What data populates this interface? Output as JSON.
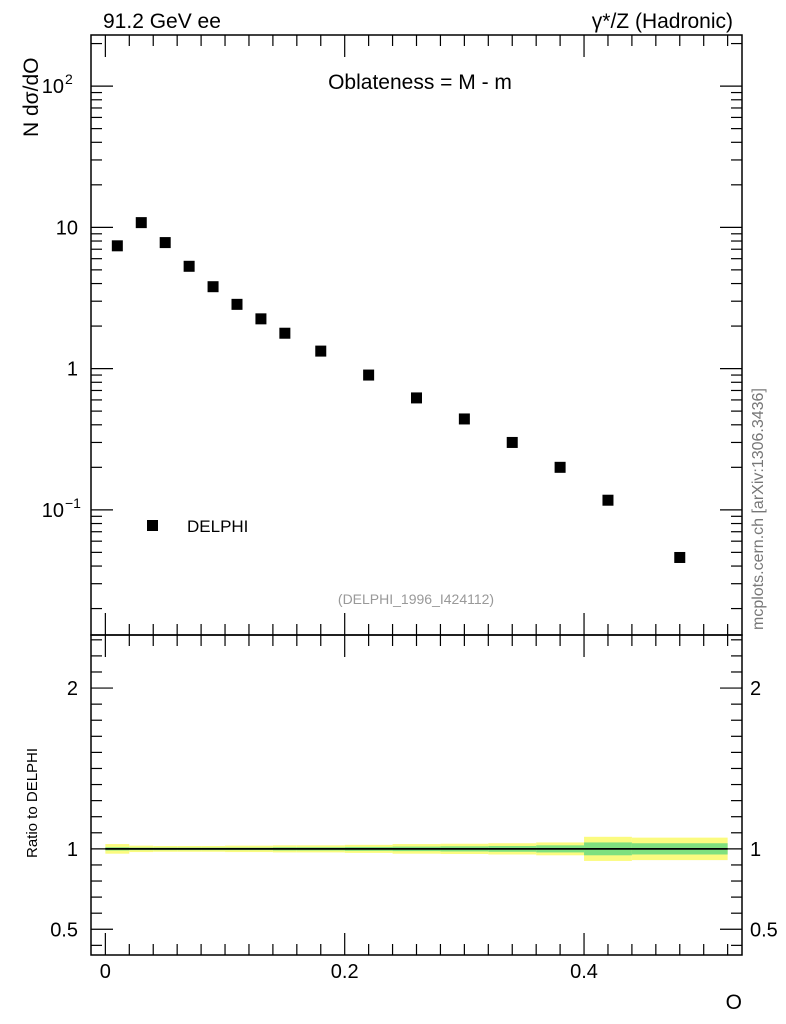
{
  "header": {
    "left": "91.2 GeV ee",
    "right": "γ*/Z (Hadronic)"
  },
  "side_label": "mcplots.cern.ch [arXiv:1306.3436]",
  "chart_data": [
    {
      "type": "scatter",
      "title": "Oblateness = M - m",
      "ylabel": "N  dσ/dO",
      "yscale": "log",
      "ylim": [
        0.013,
        230
      ],
      "xlim": [
        -0.012,
        0.532
      ],
      "y_ticks": [
        {
          "value": 0.1,
          "label": "10",
          "sup": "−1"
        },
        {
          "value": 1,
          "label": "1",
          "sup": ""
        },
        {
          "value": 10,
          "label": "10",
          "sup": ""
        },
        {
          "value": 100,
          "label": "10",
          "sup": "2"
        }
      ],
      "legend": {
        "label": "DELPHI",
        "placement": "bottom-left"
      },
      "annotation": "(DELPHI_1996_I424112)",
      "series": [
        {
          "name": "DELPHI",
          "color": "#000000",
          "x": [
            0.01,
            0.03,
            0.05,
            0.07,
            0.09,
            0.11,
            0.13,
            0.15,
            0.18,
            0.22,
            0.26,
            0.3,
            0.34,
            0.38,
            0.42,
            0.48
          ],
          "y": [
            7.4,
            10.8,
            7.8,
            5.3,
            3.8,
            2.85,
            2.25,
            1.78,
            1.33,
            0.9,
            0.62,
            0.44,
            0.3,
            0.2,
            0.117,
            0.046
          ]
        }
      ]
    },
    {
      "type": "line",
      "ylabel": "Ratio to DELPHI",
      "xlabel": "O",
      "ylim": [
        0.34,
        2.33
      ],
      "xlim": [
        -0.012,
        0.532
      ],
      "y_ticks": [
        {
          "value": 0.5,
          "label": "0.5"
        },
        {
          "value": 1,
          "label": "1"
        },
        {
          "value": 2,
          "label": "2"
        }
      ],
      "x_ticks": [
        {
          "value": 0,
          "label": "0"
        },
        {
          "value": 0.2,
          "label": "0.2"
        },
        {
          "value": 0.4,
          "label": "0.4"
        }
      ],
      "reference_line": 1,
      "bands": {
        "stat_color": "#7fe07f",
        "total_color": "#fbfb80",
        "bins": [
          {
            "x0": 0.0,
            "x1": 0.02,
            "stat": 0.01,
            "total": 0.03
          },
          {
            "x0": 0.02,
            "x1": 0.04,
            "stat": 0.008,
            "total": 0.02
          },
          {
            "x0": 0.04,
            "x1": 0.06,
            "stat": 0.008,
            "total": 0.018
          },
          {
            "x0": 0.06,
            "x1": 0.08,
            "stat": 0.008,
            "total": 0.018
          },
          {
            "x0": 0.08,
            "x1": 0.1,
            "stat": 0.008,
            "total": 0.018
          },
          {
            "x0": 0.1,
            "x1": 0.12,
            "stat": 0.008,
            "total": 0.02
          },
          {
            "x0": 0.12,
            "x1": 0.14,
            "stat": 0.008,
            "total": 0.02
          },
          {
            "x0": 0.14,
            "x1": 0.16,
            "stat": 0.01,
            "total": 0.022
          },
          {
            "x0": 0.16,
            "x1": 0.2,
            "stat": 0.01,
            "total": 0.022
          },
          {
            "x0": 0.2,
            "x1": 0.24,
            "stat": 0.012,
            "total": 0.025
          },
          {
            "x0": 0.24,
            "x1": 0.28,
            "stat": 0.014,
            "total": 0.03
          },
          {
            "x0": 0.28,
            "x1": 0.32,
            "stat": 0.016,
            "total": 0.032
          },
          {
            "x0": 0.32,
            "x1": 0.36,
            "stat": 0.018,
            "total": 0.035
          },
          {
            "x0": 0.36,
            "x1": 0.4,
            "stat": 0.022,
            "total": 0.04
          },
          {
            "x0": 0.4,
            "x1": 0.44,
            "stat": 0.04,
            "total": 0.075
          },
          {
            "x0": 0.44,
            "x1": 0.52,
            "stat": 0.035,
            "total": 0.07
          }
        ]
      }
    }
  ]
}
